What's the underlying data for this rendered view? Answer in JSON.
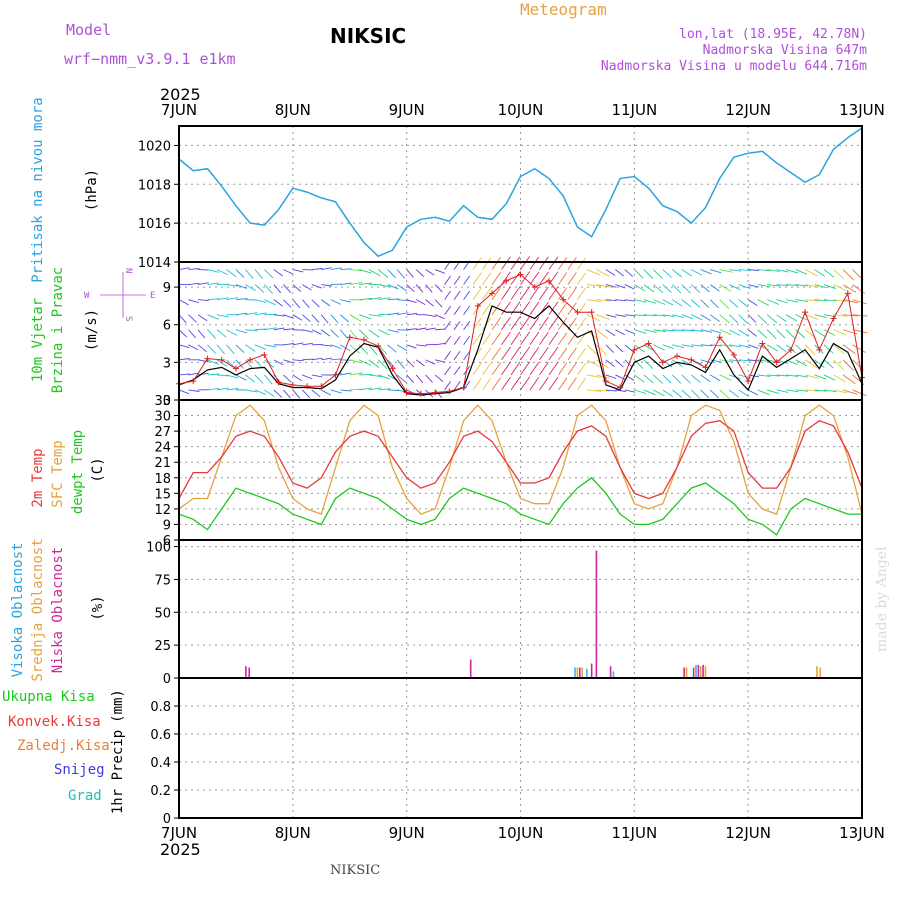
{
  "header": {
    "model_label": "Model",
    "model_name": "wrf−nmm_v3.9.1  e1km",
    "station": "NIKSIC",
    "meteogram_label": "Meteogram",
    "lonlat": "lon,lat (18.95E, 42.78N)",
    "altitude": "Nadmorska Visina 647m",
    "model_altitude": "Nadmorska Visina u modelu 644.716m",
    "footer_station": "NIKSIC",
    "credit": "made by Angel"
  },
  "time_axis": {
    "year": "2025",
    "days": [
      "7JUN",
      "8JUN",
      "9JUN",
      "10JUN",
      "11JUN",
      "12JUN",
      "13JUN"
    ],
    "hours_total": 144
  },
  "colors": {
    "pressure": "#2aa3e0",
    "wind_speed": "#000000",
    "wind_gust": "#e02020",
    "temp_2m": "#e83a3a",
    "temp_sfc": "#e6a23c",
    "dewpoint": "#1ec81e",
    "cloud_high": "#33b5ff",
    "cloud_mid": "#e6a23c",
    "cloud_low": "#cc2a9a",
    "grid": "#888888",
    "purple_text": "#b050d8",
    "orange_text": "#e8a040"
  },
  "chart_data": [
    {
      "type": "line",
      "panel": "pressure",
      "ylabel_1": "Pritisak na nivou mora",
      "ylabel_2": "(hPa)",
      "ylim": [
        1014,
        1021
      ],
      "yticks": [
        "1014",
        "1016",
        "1018",
        "1020"
      ],
      "series": [
        {
          "x_hours": [
            0,
            3,
            6,
            9,
            12,
            15,
            18,
            21,
            24,
            27,
            30,
            33,
            36,
            39,
            42,
            45,
            48,
            51,
            54,
            57,
            60,
            63,
            66,
            69,
            72,
            75,
            78,
            81,
            84,
            87,
            90,
            93,
            96,
            99,
            102,
            105,
            108,
            111,
            114,
            117,
            120,
            123,
            126,
            129,
            132,
            135,
            138,
            141,
            144
          ],
          "values": [
            1019.3,
            1018.7,
            1018.8,
            1017.9,
            1016.9,
            1016.0,
            1015.9,
            1016.7,
            1017.8,
            1017.6,
            1017.3,
            1017.1,
            1016.0,
            1015.0,
            1014.3,
            1014.6,
            1015.8,
            1016.2,
            1016.3,
            1016.1,
            1016.9,
            1016.3,
            1016.2,
            1017.0,
            1018.4,
            1018.8,
            1018.3,
            1017.4,
            1015.8,
            1015.3,
            1016.7,
            1018.3,
            1018.4,
            1017.8,
            1016.9,
            1016.6,
            1016.0,
            1016.8,
            1018.3,
            1019.4,
            1019.6,
            1019.7,
            1019.1,
            1018.6,
            1018.1,
            1018.5,
            1019.8,
            1020.4,
            1020.9
          ]
        }
      ]
    },
    {
      "type": "line",
      "panel": "wind",
      "ylabel_1": "10m Vjetar",
      "ylabel_2": "Brzina i Pravac",
      "ylabel_3": "(m/s)",
      "compass_n": "N",
      "compass_w": "W",
      "compass_e": "E",
      "compass_s": "S",
      "ylim": [
        0,
        11
      ],
      "yticks": [
        "0",
        "3",
        "6",
        "9"
      ],
      "series": [
        {
          "x_hours": [
            0,
            3,
            6,
            9,
            12,
            15,
            18,
            21,
            24,
            27,
            30,
            33,
            36,
            39,
            42,
            45,
            48,
            51,
            54,
            57,
            60,
            63,
            66,
            69,
            72,
            75,
            78,
            81,
            84,
            87,
            90,
            93,
            96,
            99,
            102,
            105,
            108,
            111,
            114,
            117,
            120,
            123,
            126,
            129,
            132,
            135,
            138,
            141,
            144
          ],
          "values": [
            1.2,
            1.6,
            2.4,
            2.6,
            2.0,
            2.5,
            2.6,
            1.3,
            1.0,
            1.0,
            0.9,
            1.6,
            3.5,
            4.5,
            4.2,
            2.0,
            0.5,
            0.4,
            0.5,
            0.6,
            1.0,
            4.0,
            7.5,
            7.0,
            7.0,
            6.5,
            7.5,
            6.2,
            5.0,
            5.5,
            1.2,
            0.8,
            3.0,
            3.5,
            2.5,
            3.0,
            2.8,
            2.2,
            4.0,
            2.0,
            0.8,
            3.5,
            2.6,
            3.3,
            4.0,
            2.5,
            4.5,
            3.8,
            1.3
          ]
        },
        {
          "x_hours": [
            0,
            3,
            6,
            9,
            12,
            15,
            18,
            21,
            24,
            27,
            30,
            33,
            36,
            39,
            42,
            45,
            48,
            51,
            54,
            57,
            60,
            63,
            66,
            69,
            72,
            75,
            78,
            81,
            84,
            87,
            90,
            93,
            96,
            99,
            102,
            105,
            108,
            111,
            114,
            117,
            120,
            123,
            126,
            129,
            132,
            135,
            138,
            141,
            144
          ],
          "values": [
            1.3,
            1.5,
            3.3,
            3.2,
            2.5,
            3.2,
            3.6,
            1.4,
            1.2,
            1.1,
            1.1,
            2.0,
            5.0,
            4.8,
            4.3,
            2.5,
            0.6,
            0.5,
            0.6,
            0.7,
            1.0,
            7.5,
            8.5,
            9.5,
            10.0,
            9.0,
            9.5,
            8.0,
            7.0,
            7.0,
            1.5,
            1.0,
            4.0,
            4.5,
            3.0,
            3.5,
            3.2,
            2.6,
            5.0,
            3.6,
            1.5,
            4.5,
            3.0,
            4.0,
            7.0,
            4.0,
            6.5,
            8.5,
            1.8
          ]
        }
      ]
    },
    {
      "type": "line",
      "panel": "temperature",
      "ylabel_1": "2m Temp",
      "ylabel_2": "SFC Temp",
      "ylabel_3": "dewpt Temp",
      "ylabel_4": "(C)",
      "ylim": [
        6,
        33
      ],
      "yticks": [
        "6",
        "9",
        "12",
        "15",
        "18",
        "21",
        "24",
        "27",
        "30",
        "33"
      ],
      "series": [
        {
          "name": "2m Temp",
          "x_hours": [
            0,
            3,
            6,
            9,
            12,
            15,
            18,
            21,
            24,
            27,
            30,
            33,
            36,
            39,
            42,
            45,
            48,
            51,
            54,
            57,
            60,
            63,
            66,
            69,
            72,
            75,
            78,
            81,
            84,
            87,
            90,
            93,
            96,
            99,
            102,
            105,
            108,
            111,
            114,
            117,
            120,
            123,
            126,
            129,
            132,
            135,
            138,
            141,
            144
          ],
          "values": [
            14,
            19,
            19,
            22,
            26,
            27,
            26,
            22,
            17,
            16,
            18,
            23,
            26,
            27,
            26,
            22,
            18,
            16,
            17,
            21,
            26,
            27,
            25,
            21,
            17,
            17,
            18,
            23,
            27,
            28,
            26,
            20,
            15,
            14,
            15,
            20,
            26,
            28.5,
            29,
            27,
            19,
            16,
            16,
            20,
            27,
            29,
            28,
            23,
            16
          ]
        },
        {
          "name": "SFC Temp",
          "x_hours": [
            0,
            3,
            6,
            9,
            12,
            15,
            18,
            21,
            24,
            27,
            30,
            33,
            36,
            39,
            42,
            45,
            48,
            51,
            54,
            57,
            60,
            63,
            66,
            69,
            72,
            75,
            78,
            81,
            84,
            87,
            90,
            93,
            96,
            99,
            102,
            105,
            108,
            111,
            114,
            117,
            120,
            123,
            126,
            129,
            132,
            135,
            138,
            141,
            144
          ],
          "values": [
            12,
            14,
            14,
            22,
            30,
            32,
            29,
            20,
            14,
            12,
            11,
            20,
            29,
            32,
            30,
            20,
            14,
            11,
            12,
            20,
            29,
            32,
            29,
            21,
            14,
            13,
            13,
            20,
            30,
            32,
            29,
            20,
            13,
            12,
            13,
            20,
            30,
            32,
            31,
            25,
            15,
            12,
            11,
            20,
            30,
            32,
            30,
            22,
            11
          ]
        },
        {
          "name": "dewpt Temp",
          "x_hours": [
            0,
            3,
            6,
            9,
            12,
            15,
            18,
            21,
            24,
            27,
            30,
            33,
            36,
            39,
            42,
            45,
            48,
            51,
            54,
            57,
            60,
            63,
            66,
            69,
            72,
            75,
            78,
            81,
            84,
            87,
            90,
            93,
            96,
            99,
            102,
            105,
            108,
            111,
            114,
            117,
            120,
            123,
            126,
            129,
            132,
            135,
            138,
            141,
            144
          ],
          "values": [
            11,
            10,
            8,
            12,
            16,
            15,
            14,
            13,
            11,
            10,
            9,
            14,
            16,
            15,
            14,
            12,
            10,
            9,
            10,
            14,
            16,
            15,
            14,
            13,
            11,
            10,
            9,
            13,
            16,
            18,
            15,
            11,
            9,
            9,
            10,
            13,
            16,
            17,
            15,
            13,
            10,
            9,
            7,
            12,
            14,
            13,
            12,
            11,
            11
          ]
        }
      ]
    },
    {
      "type": "bar",
      "panel": "clouds",
      "ylabel_1": "Visoka Oblacnost",
      "ylabel_2": "Srednja Oblacnost",
      "ylabel_3": "Niska Oblacnost",
      "ylabel_4": "(%)",
      "ylim": [
        0,
        105
      ],
      "yticks": [
        "0",
        "25",
        "50",
        "75",
        "100"
      ],
      "bars": [
        {
          "hour": 14.1,
          "layer": "low",
          "value": 9
        },
        {
          "hour": 14.8,
          "layer": "low",
          "value": 8
        },
        {
          "hour": 61.5,
          "layer": "low",
          "value": 14
        },
        {
          "hour": 83.5,
          "layer": "high",
          "value": 8
        },
        {
          "hour": 84.0,
          "layer": "mid",
          "value": 8
        },
        {
          "hour": 84.5,
          "layer": "low",
          "value": 8
        },
        {
          "hour": 85.0,
          "layer": "mid",
          "value": 8
        },
        {
          "hour": 86.0,
          "layer": "high",
          "value": 7
        },
        {
          "hour": 87.0,
          "layer": "low",
          "value": 11
        },
        {
          "hour": 88.0,
          "layer": "low",
          "value": 97
        },
        {
          "hour": 91.0,
          "layer": "low",
          "value": 9
        },
        {
          "hour": 91.6,
          "layer": "high",
          "value": 5
        },
        {
          "hour": 106.5,
          "layer": "low",
          "value": 8
        },
        {
          "hour": 107.0,
          "layer": "mid",
          "value": 8
        },
        {
          "hour": 108.5,
          "layer": "low",
          "value": 8
        },
        {
          "hour": 109.0,
          "layer": "high",
          "value": 10
        },
        {
          "hour": 109.5,
          "layer": "low",
          "value": 10
        },
        {
          "hour": 110.0,
          "layer": "mid",
          "value": 9
        },
        {
          "hour": 110.5,
          "layer": "low",
          "value": 10
        },
        {
          "hour": 111.0,
          "layer": "mid",
          "value": 9
        },
        {
          "hour": 134.5,
          "layer": "mid",
          "value": 9
        },
        {
          "hour": 135.2,
          "layer": "mid",
          "value": 8
        }
      ]
    },
    {
      "type": "bar",
      "panel": "precipitation",
      "ylabel_1": "1hr Precip",
      "ylabel_2": "(mm)",
      "ylim": [
        0,
        1.0
      ],
      "yticks": [
        "0",
        "0.2",
        "0.4",
        "0.6",
        "0.8"
      ],
      "legend": [
        "Ukupna  Kisa",
        "Konvek.Kisa",
        "Zaledj.Kisa",
        "Snijeg",
        "Grad"
      ],
      "legend_colors": [
        "#1ec81e",
        "#e83a3a",
        "#e8803c",
        "#3c3cd8",
        "#20c0b0"
      ],
      "bars": []
    }
  ]
}
